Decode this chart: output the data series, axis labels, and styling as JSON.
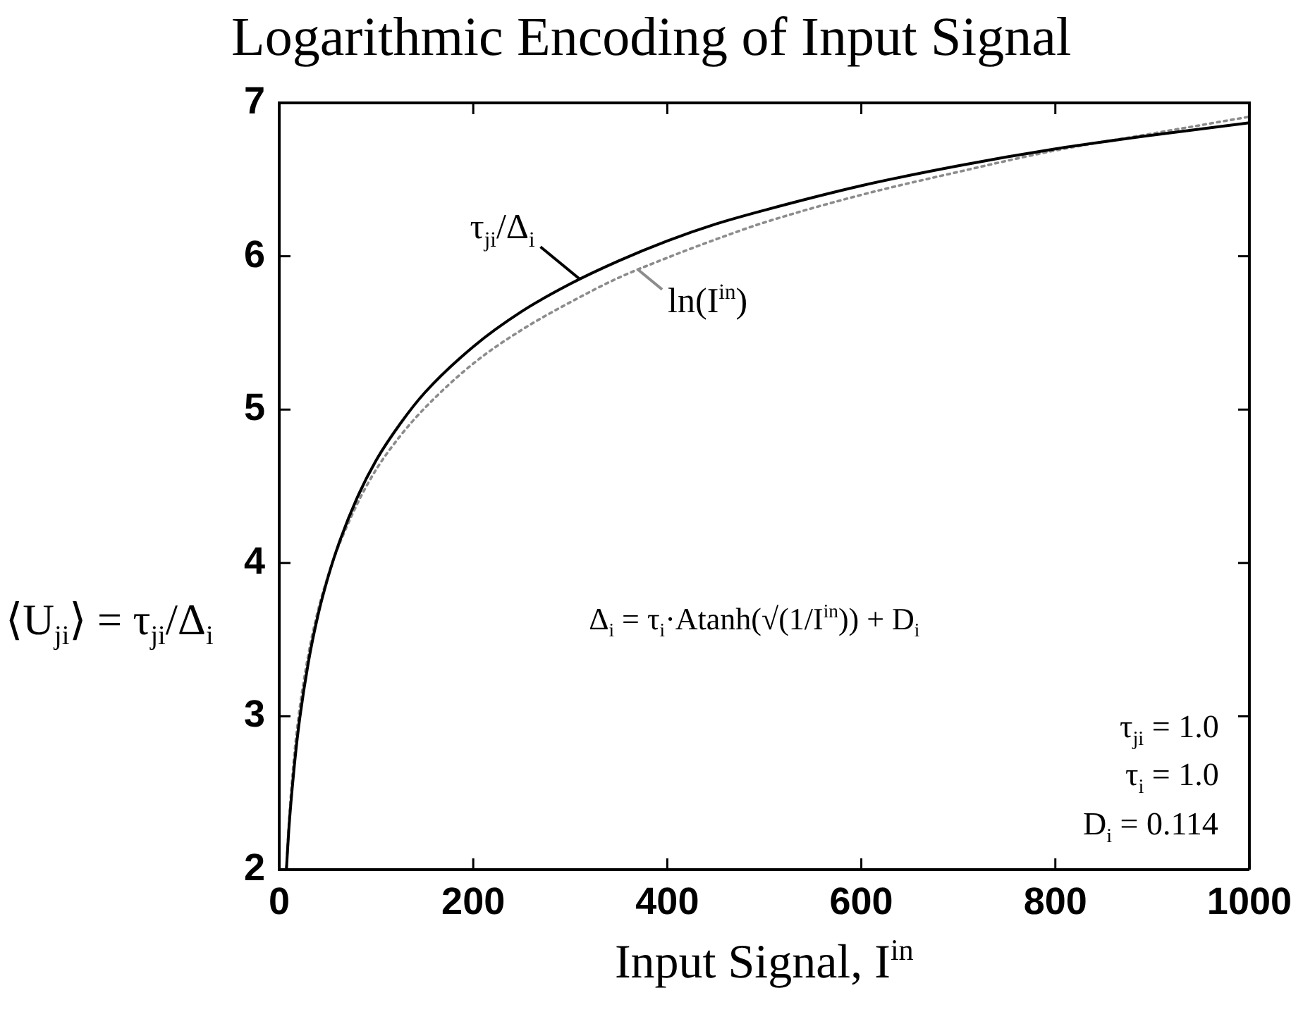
{
  "chart_data": {
    "type": "line",
    "title": "Logarithmic Encoding of Input Signal",
    "xlabel": "Input Signal, I$^{in}$",
    "ylabel": "⟨U$_{ji}$⟩ = τ$_{ji}$/Δ$_{i}$",
    "x": [
      7.5,
      10,
      15,
      20,
      30,
      40,
      50,
      60,
      80,
      100,
      125,
      150,
      200,
      250,
      300,
      350,
      400,
      450,
      500,
      600,
      700,
      800,
      900,
      1000
    ],
    "series": [
      {
        "name": "τ$_{ji}$/Δ$_{i}$",
        "color": "#000000",
        "values": [
          2.01,
          2.27,
          2.64,
          2.93,
          3.35,
          3.66,
          3.9,
          4.1,
          4.42,
          4.67,
          4.91,
          5.11,
          5.41,
          5.64,
          5.82,
          5.97,
          6.1,
          6.21,
          6.3,
          6.46,
          6.59,
          6.7,
          6.79,
          6.87
        ]
      },
      {
        "name": "ln(I$^{in}$)",
        "color": "#8c8c8c",
        "line_style": "dotted",
        "values": [
          2.01,
          2.3,
          2.71,
          3.0,
          3.4,
          3.69,
          3.91,
          4.09,
          4.38,
          4.61,
          4.83,
          5.01,
          5.3,
          5.52,
          5.7,
          5.86,
          5.99,
          6.11,
          6.22,
          6.4,
          6.55,
          6.69,
          6.8,
          6.91
        ]
      }
    ],
    "xlim": [
      0,
      1000
    ],
    "ylim": [
      2,
      7
    ],
    "xticks": [
      0,
      200,
      400,
      600,
      800,
      1000
    ],
    "yticks": [
      2,
      3,
      4,
      5,
      6,
      7
    ],
    "marker": "none",
    "line_style": "solid",
    "annotations": [
      "Δ$_{i}$ = τ$_{i}$·Atanh(√(1/I$^{in}$)) + D$_{i}$",
      "τ$_{ji}$ = 1.0",
      "τ$_{i}$ = 1.0",
      "D$_{i}$ = 0.114"
    ]
  }
}
